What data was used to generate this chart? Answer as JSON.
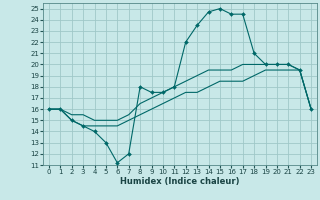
{
  "title": "",
  "xlabel": "Humidex (Indice chaleur)",
  "bg_color": "#c8e8e8",
  "line_color": "#006868",
  "grid_color": "#a0c8c8",
  "xlim": [
    -0.5,
    23.5
  ],
  "ylim": [
    11,
    25.5
  ],
  "xticks": [
    0,
    1,
    2,
    3,
    4,
    5,
    6,
    7,
    8,
    9,
    10,
    11,
    12,
    13,
    14,
    15,
    16,
    17,
    18,
    19,
    20,
    21,
    22,
    23
  ],
  "yticks": [
    11,
    12,
    13,
    14,
    15,
    16,
    17,
    18,
    19,
    20,
    21,
    22,
    23,
    24,
    25
  ],
  "line1_x": [
    0,
    1,
    2,
    3,
    4,
    5,
    6,
    7,
    8,
    9,
    10,
    11,
    12,
    13,
    14,
    15,
    16,
    17,
    18,
    19,
    20,
    21,
    22,
    23
  ],
  "line1_y": [
    16.0,
    16.0,
    15.0,
    14.5,
    14.0,
    13.0,
    11.2,
    12.0,
    18.0,
    17.5,
    17.5,
    18.0,
    22.0,
    23.5,
    24.7,
    25.0,
    24.5,
    24.5,
    21.0,
    20.0,
    20.0,
    20.0,
    19.5,
    16.0
  ],
  "line2_x": [
    0,
    1,
    2,
    3,
    4,
    5,
    6,
    7,
    8,
    9,
    10,
    11,
    12,
    13,
    14,
    15,
    16,
    17,
    18,
    19,
    20,
    21,
    22,
    23
  ],
  "line2_y": [
    16.0,
    16.0,
    15.5,
    15.5,
    15.0,
    15.0,
    15.0,
    15.5,
    16.5,
    17.0,
    17.5,
    18.0,
    18.5,
    19.0,
    19.5,
    19.5,
    19.5,
    20.0,
    20.0,
    20.0,
    20.0,
    20.0,
    19.5,
    16.0
  ],
  "line3_x": [
    0,
    1,
    2,
    3,
    4,
    5,
    6,
    7,
    8,
    9,
    10,
    11,
    12,
    13,
    14,
    15,
    16,
    17,
    18,
    19,
    20,
    21,
    22,
    23
  ],
  "line3_y": [
    16.0,
    16.0,
    15.0,
    14.5,
    14.5,
    14.5,
    14.5,
    15.0,
    15.5,
    16.0,
    16.5,
    17.0,
    17.5,
    17.5,
    18.0,
    18.5,
    18.5,
    18.5,
    19.0,
    19.5,
    19.5,
    19.5,
    19.5,
    16.0
  ]
}
